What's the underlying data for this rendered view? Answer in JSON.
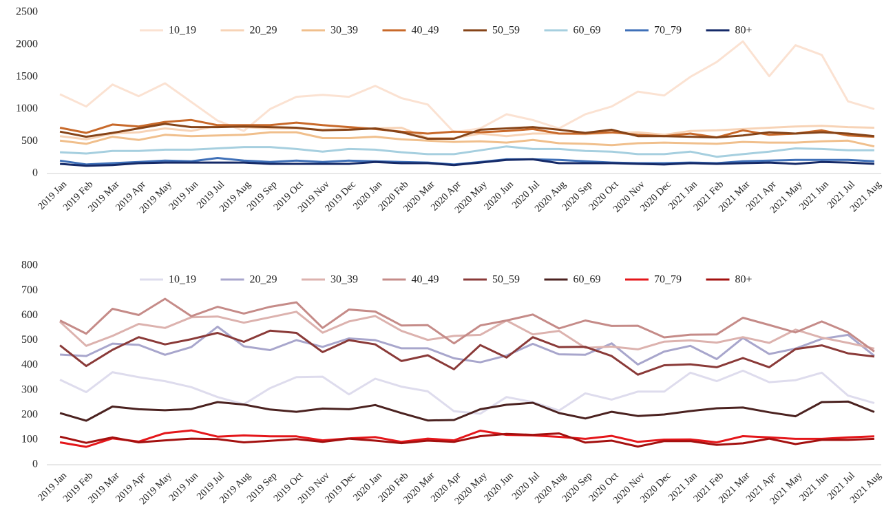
{
  "chart_data": [
    {
      "type": "line",
      "categories": [
        "2019 Jan",
        "2019 Feb",
        "2019 Mar",
        "2019 Apr",
        "2019 May",
        "2019 Jun",
        "2019 Jul",
        "2019 Aug",
        "2019 Sep",
        "2019 Oct",
        "2019 Nov",
        "2019 Dec",
        "2020 Jan",
        "2020 Feb",
        "2020 Mar",
        "2020 Apr",
        "2020 May",
        "2020 Jun",
        "2020 Jul",
        "2020 Aug",
        "2020 Sep",
        "2020 Oct",
        "2020 Nov",
        "2020 Dec",
        "2021 Jan",
        "2021 Feb",
        "2021 Mar",
        "2021 Apr",
        "2021 May",
        "2021 Jun",
        "2021 Jul",
        "2021 Aug"
      ],
      "ylim": [
        0,
        2500
      ],
      "yticks": [
        0,
        500,
        1000,
        1500,
        2000,
        2500
      ],
      "grid": false,
      "legend": "top",
      "series": [
        {
          "name": "10_19",
          "color": "#fbe2d2",
          "values": [
            1230,
            1040,
            1380,
            1200,
            1400,
            1110,
            820,
            660,
            1000,
            1190,
            1220,
            1190,
            1360,
            1170,
            1070,
            640,
            700,
            920,
            830,
            700,
            920,
            1040,
            1270,
            1210,
            1500,
            1730,
            2050,
            1510,
            1990,
            1840,
            1120,
            1000
          ]
        },
        {
          "name": "20_29",
          "color": "#f7d3b6",
          "values": [
            580,
            530,
            620,
            640,
            700,
            660,
            740,
            720,
            700,
            700,
            680,
            690,
            700,
            710,
            550,
            550,
            620,
            580,
            620,
            620,
            610,
            630,
            640,
            600,
            660,
            670,
            690,
            710,
            730,
            740,
            720,
            710
          ]
        },
        {
          "name": "30_39",
          "color": "#f0bf8c",
          "values": [
            510,
            460,
            570,
            520,
            600,
            580,
            590,
            600,
            640,
            640,
            550,
            550,
            570,
            530,
            510,
            490,
            500,
            480,
            520,
            470,
            460,
            440,
            470,
            480,
            470,
            460,
            490,
            480,
            480,
            500,
            510,
            420
          ]
        },
        {
          "name": "40_49",
          "color": "#c8692a",
          "values": [
            710,
            630,
            760,
            730,
            800,
            830,
            750,
            750,
            750,
            790,
            750,
            720,
            690,
            650,
            620,
            650,
            640,
            660,
            690,
            620,
            620,
            640,
            600,
            580,
            620,
            560,
            670,
            600,
            620,
            670,
            590,
            570
          ]
        },
        {
          "name": "50_59",
          "color": "#864418",
          "values": [
            650,
            570,
            630,
            700,
            770,
            720,
            720,
            730,
            720,
            710,
            670,
            680,
            700,
            640,
            540,
            540,
            680,
            700,
            720,
            680,
            630,
            680,
            580,
            580,
            570,
            560,
            590,
            640,
            620,
            640,
            620,
            580
          ]
        },
        {
          "name": "60_69",
          "color": "#a6cfdf",
          "values": [
            330,
            310,
            350,
            350,
            370,
            370,
            390,
            410,
            410,
            380,
            340,
            380,
            370,
            330,
            300,
            300,
            360,
            420,
            380,
            380,
            350,
            340,
            300,
            300,
            340,
            260,
            300,
            340,
            390,
            380,
            360,
            360
          ]
        },
        {
          "name": "70_79",
          "color": "#3f70b8",
          "values": [
            200,
            140,
            160,
            180,
            200,
            190,
            240,
            200,
            180,
            200,
            180,
            200,
            190,
            180,
            170,
            140,
            180,
            220,
            220,
            210,
            190,
            170,
            160,
            160,
            170,
            160,
            190,
            200,
            210,
            210,
            210,
            190
          ]
        },
        {
          "name": "80+",
          "color": "#152a68",
          "values": [
            150,
            120,
            130,
            160,
            170,
            170,
            170,
            170,
            150,
            150,
            150,
            150,
            180,
            160,
            160,
            130,
            170,
            210,
            220,
            160,
            160,
            160,
            150,
            140,
            160,
            150,
            160,
            170,
            150,
            180,
            170,
            150
          ]
        }
      ]
    },
    {
      "type": "line",
      "categories": [
        "2019 Jan",
        "2019 Feb",
        "2019 Mar",
        "2019 Apr",
        "2019 May",
        "2019 Jun",
        "2019 Jul",
        "2019 Aug",
        "2019 Sep",
        "2019 Oct",
        "2019 Nov",
        "2019 Dec",
        "2020 Jan",
        "2020 Feb",
        "2020 Mar",
        "2020 Apr",
        "2020 May",
        "2020 Jun",
        "2020 Jul",
        "2020 Aug",
        "2020 Sep",
        "2020 Oct",
        "2020 Nov",
        "2020 Dec",
        "2021 Jan",
        "2021 Feb",
        "2021 Mar",
        "2021 Apr",
        "2021 May",
        "2021 Jun",
        "2021 Jul",
        "2021 Aug"
      ],
      "ylim": [
        0,
        800
      ],
      "yticks": [
        0,
        100,
        200,
        300,
        400,
        500,
        600,
        700,
        800
      ],
      "grid": false,
      "legend": "top",
      "series": [
        {
          "name": "10_19",
          "color": "#dedced",
          "values": [
            342,
            292,
            372,
            352,
            336,
            312,
            272,
            243,
            308,
            352,
            354,
            283,
            346,
            314,
            295,
            215,
            205,
            272,
            252,
            218,
            287,
            262,
            294,
            294,
            370,
            336,
            378,
            332,
            340,
            370,
            278,
            248
          ]
        },
        {
          "name": "20_29",
          "color": "#a8a6cc",
          "values": [
            443,
            437,
            487,
            482,
            442,
            473,
            555,
            476,
            461,
            501,
            474,
            508,
            501,
            468,
            468,
            428,
            412,
            439,
            486,
            444,
            442,
            488,
            403,
            455,
            478,
            425,
            510,
            445,
            467,
            506,
            522,
            438
          ]
        },
        {
          "name": "30_39",
          "color": "#dcb2ae",
          "values": [
            575,
            478,
            518,
            566,
            550,
            593,
            596,
            571,
            593,
            615,
            531,
            576,
            598,
            538,
            502,
            518,
            522,
            580,
            524,
            538,
            470,
            475,
            464,
            495,
            500,
            491,
            513,
            490,
            543,
            511,
            490,
            467
          ]
        },
        {
          "name": "40_49",
          "color": "#c58b88",
          "values": [
            580,
            527,
            627,
            602,
            667,
            597,
            635,
            608,
            635,
            653,
            550,
            624,
            616,
            560,
            561,
            488,
            560,
            580,
            604,
            548,
            580,
            558,
            559,
            512,
            523,
            524,
            591,
            562,
            532,
            576,
            532,
            455
          ]
        },
        {
          "name": "50_59",
          "color": "#8a3a38",
          "values": [
            480,
            397,
            462,
            513,
            484,
            505,
            530,
            494,
            539,
            530,
            453,
            501,
            484,
            417,
            440,
            384,
            481,
            431,
            513,
            473,
            474,
            437,
            362,
            400,
            404,
            392,
            429,
            392,
            465,
            480,
            448,
            435
          ]
        },
        {
          "name": "60_69",
          "color": "#4b2220",
          "values": [
            208,
            177,
            234,
            223,
            219,
            224,
            252,
            242,
            222,
            213,
            226,
            223,
            240,
            208,
            178,
            180,
            223,
            241,
            249,
            208,
            186,
            213,
            196,
            202,
            216,
            227,
            230,
            211,
            195,
            252,
            254,
            212
          ]
        },
        {
          "name": "70_79",
          "color": "#e4161a",
          "values": [
            90,
            72,
            106,
            93,
            127,
            138,
            113,
            118,
            114,
            114,
            98,
            106,
            111,
            92,
            105,
            98,
            137,
            120,
            118,
            112,
            104,
            116,
            92,
            101,
            102,
            90,
            115,
            110,
            104,
            104,
            110,
            114
          ]
        },
        {
          "name": "80+",
          "color": "#a3100f",
          "values": [
            113,
            88,
            110,
            90,
            98,
            105,
            103,
            90,
            96,
            103,
            92,
            105,
            97,
            87,
            97,
            92,
            115,
            124,
            120,
            126,
            89,
            97,
            73,
            95,
            95,
            80,
            86,
            105,
            83,
            100,
            100,
            104
          ]
        }
      ]
    }
  ]
}
